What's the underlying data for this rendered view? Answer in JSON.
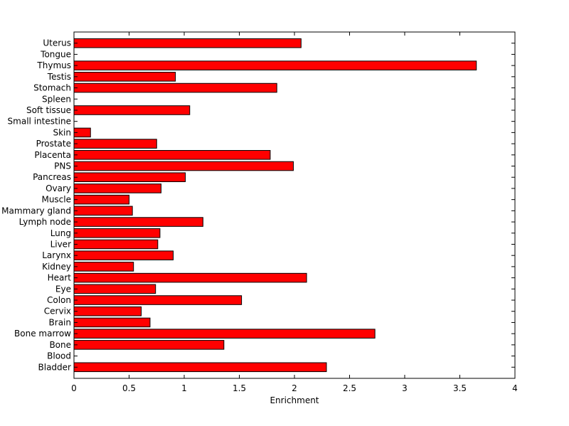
{
  "chart_data": {
    "type": "bar",
    "orientation": "horizontal",
    "xlabel": "Enrichment",
    "ylabel": "",
    "title": "",
    "xlim": [
      0,
      4
    ],
    "xticks": [
      0,
      0.5,
      1,
      1.5,
      2,
      2.5,
      3,
      3.5,
      4
    ],
    "xtick_labels": [
      "0",
      "0.5",
      "1",
      "1.5",
      "2",
      "2.5",
      "3",
      "3.5",
      "4"
    ],
    "grid": false,
    "bar_color": "#ff0000",
    "categories": [
      "Bladder",
      "Blood",
      "Bone",
      "Bone marrow",
      "Brain",
      "Cervix",
      "Colon",
      "Eye",
      "Heart",
      "Kidney",
      "Larynx",
      "Liver",
      "Lung",
      "Lymph node",
      "Mammary gland",
      "Muscle",
      "Ovary",
      "Pancreas",
      "PNS",
      "Placenta",
      "Prostate",
      "Skin",
      "Small intestine",
      "Soft tissue",
      "Spleen",
      "Stomach",
      "Testis",
      "Thymus",
      "Tongue",
      "Uterus"
    ],
    "values": [
      2.29,
      0,
      1.36,
      2.73,
      0.69,
      0.61,
      1.52,
      0.74,
      2.11,
      0.54,
      0.9,
      0.76,
      0.78,
      1.17,
      0.53,
      0.5,
      0.79,
      1.01,
      1.99,
      1.78,
      0.75,
      0.15,
      0,
      1.05,
      0,
      1.84,
      0.92,
      3.65,
      0,
      2.06
    ]
  }
}
